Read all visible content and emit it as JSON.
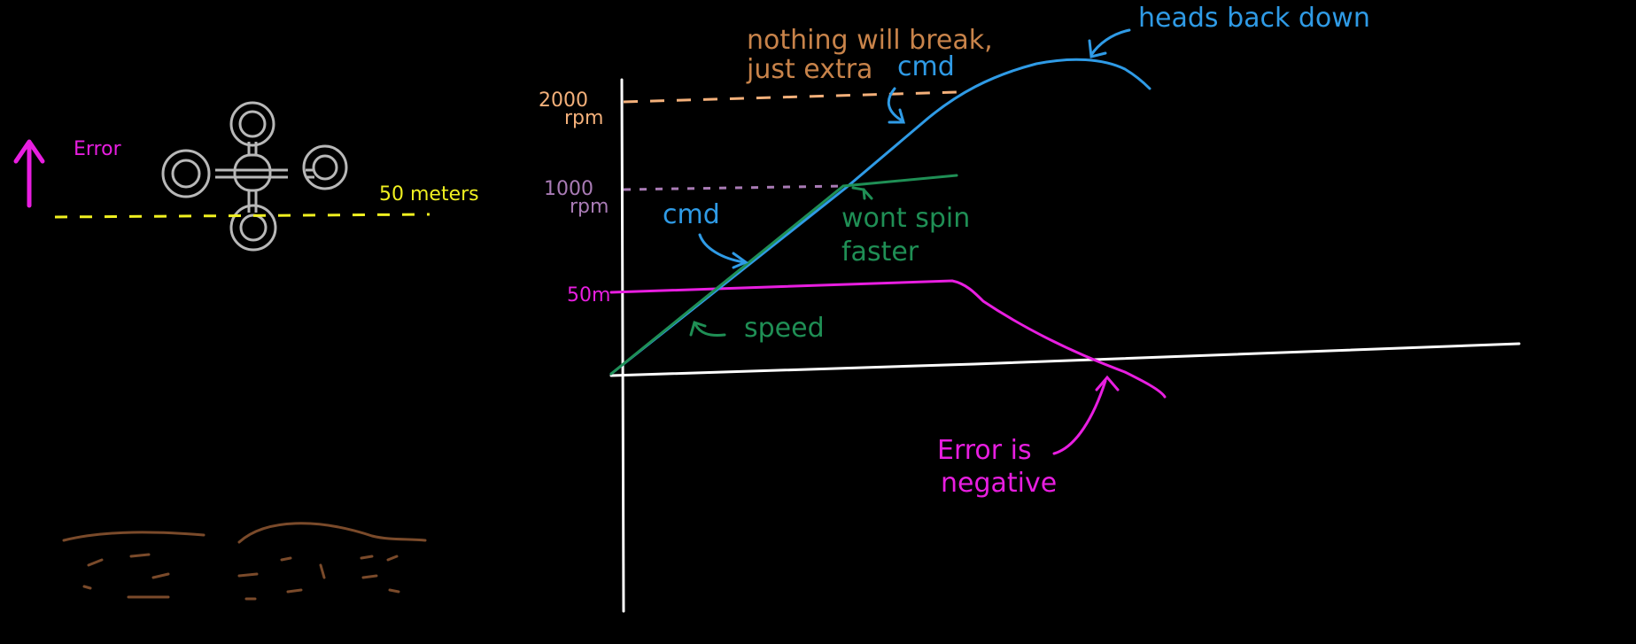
{
  "colors": {
    "background": "#000000",
    "error": "#e81ee0",
    "target": "#f0f020",
    "drone": "#b8b8b8",
    "ground": "#7a4a2a",
    "axis": "#ffffff",
    "cmd": "#2f9be6",
    "speed": "#1f8f55",
    "rpm2000": "#f4b07a",
    "rpm1000": "#a97bb5",
    "note": "#c8834a"
  },
  "scene": {
    "error_label": "Error",
    "target_label": "50 meters",
    "drone_icon": "quadcopter-icon",
    "arrow_icon": "arrow-up-icon"
  },
  "graph": {
    "y_tick_2000": "2000",
    "y_tick_2000_unit": "rpm",
    "y_tick_1000": "1000",
    "y_tick_1000_unit": "rpm",
    "y_tick_50": "50m"
  },
  "annotations": {
    "nothing_break_line1": "nothing will break,",
    "nothing_break_line2": "just extra",
    "cmd_top": "cmd",
    "heads_back_down": "heads back down",
    "cmd_left": "cmd",
    "wont_spin_line1": "wont spin",
    "wont_spin_line2": "faster",
    "speed": "speed",
    "error_neg_line1": "Error is",
    "error_neg_line2": "negative"
  }
}
